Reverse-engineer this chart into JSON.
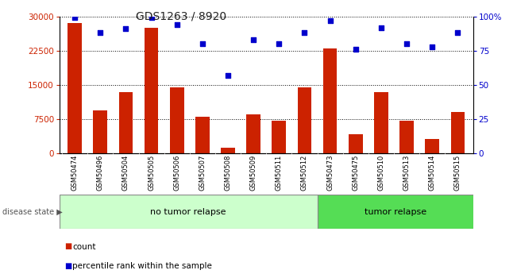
{
  "title": "GDS1263 / 8920",
  "samples": [
    "GSM50474",
    "GSM50496",
    "GSM50504",
    "GSM50505",
    "GSM50506",
    "GSM50507",
    "GSM50508",
    "GSM50509",
    "GSM50511",
    "GSM50512",
    "GSM50473",
    "GSM50475",
    "GSM50510",
    "GSM50513",
    "GSM50514",
    "GSM50515"
  ],
  "counts": [
    28500,
    9500,
    13500,
    27500,
    14500,
    8000,
    1200,
    8500,
    7200,
    14500,
    23000,
    4200,
    13500,
    7200,
    3200,
    9000
  ],
  "percentiles": [
    99,
    88,
    91,
    99,
    94,
    80,
    57,
    83,
    80,
    88,
    97,
    76,
    92,
    80,
    78,
    88
  ],
  "no_tumor_count": 10,
  "tumor_count": 6,
  "bar_color": "#CC2200",
  "dot_color": "#0000CC",
  "no_tumor_color": "#CCFFCC",
  "tumor_color": "#55DD55",
  "ylim_left": [
    0,
    30000
  ],
  "ylim_right": [
    0,
    100
  ],
  "yticks_left": [
    0,
    7500,
    15000,
    22500,
    30000
  ],
  "yticks_right": [
    0,
    25,
    50,
    75,
    100
  ],
  "legend_count_label": "count",
  "legend_pct_label": "percentile rank within the sample",
  "disease_state_label": "disease state",
  "no_tumor_label": "no tumor relapse",
  "tumor_label": "tumor relapse",
  "xtick_bg_color": "#C8C8C8",
  "bar_width": 0.55
}
